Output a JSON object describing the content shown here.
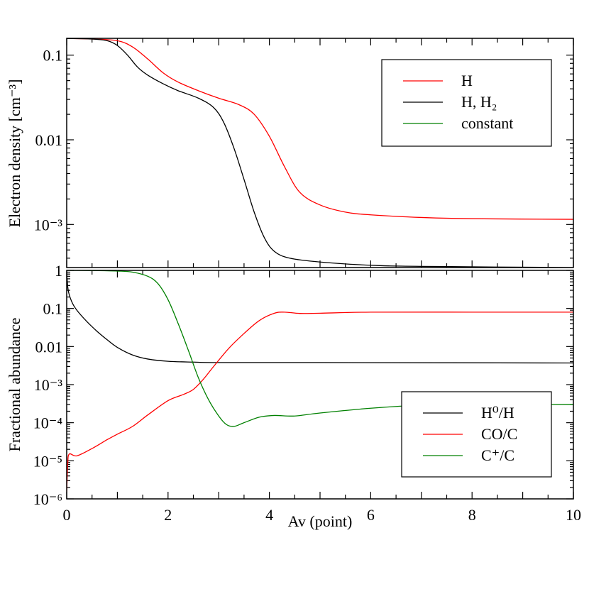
{
  "chart_data": [
    {
      "type": "line",
      "panel": "top",
      "ylabel": "Electron density [cm⁻³]",
      "yscale": "log",
      "ylim": [
        0.00031,
        0.158
      ],
      "xlim": [
        0,
        10
      ],
      "ytick_labels": [
        {
          "value": 0.1,
          "label": "0.1"
        },
        {
          "value": 0.01,
          "label": "0.01"
        },
        {
          "value": 0.001,
          "label": "10⁻³"
        }
      ],
      "legend_position": "top-right",
      "series": [
        {
          "name": "H",
          "color": "#ff0000",
          "x": [
            0,
            0.5,
            1.0,
            1.3,
            1.6,
            1.9,
            2.2,
            2.6,
            3.0,
            3.4,
            3.7,
            4.0,
            4.3,
            4.6,
            5.0,
            5.5,
            6.0,
            7.0,
            8.0,
            10.0
          ],
          "y": [
            0.157,
            0.155,
            0.148,
            0.125,
            0.09,
            0.062,
            0.048,
            0.038,
            0.031,
            0.026,
            0.02,
            0.011,
            0.0048,
            0.0024,
            0.0017,
            0.0014,
            0.0013,
            0.00121,
            0.00117,
            0.00115
          ]
        },
        {
          "name": "H, H₂",
          "color": "#000000",
          "x": [
            0,
            0.5,
            0.8,
            1.0,
            1.2,
            1.4,
            1.6,
            1.9,
            2.2,
            2.6,
            2.9,
            3.1,
            3.3,
            3.5,
            3.7,
            3.9,
            4.1,
            4.4,
            5.0,
            6.0,
            7.0,
            10.0
          ],
          "y": [
            0.157,
            0.155,
            0.148,
            0.13,
            0.1,
            0.072,
            0.058,
            0.046,
            0.038,
            0.031,
            0.024,
            0.016,
            0.008,
            0.0034,
            0.0014,
            0.0007,
            0.00048,
            0.0004,
            0.00036,
            0.00033,
            0.00032,
            0.00031
          ]
        },
        {
          "name": "constant",
          "color": "#008000",
          "x": [],
          "y": []
        }
      ]
    },
    {
      "type": "line",
      "panel": "bottom",
      "xlabel": "Av (point)",
      "ylabel": "Fractional abundance",
      "yscale": "log",
      "ylim": [
        1e-06,
        1
      ],
      "xlim": [
        0,
        10
      ],
      "xtick_labels": [
        "0",
        "2",
        "4",
        "6",
        "8",
        "10"
      ],
      "ytick_labels": [
        {
          "value": 1,
          "label": "1"
        },
        {
          "value": 0.1,
          "label": "0.1"
        },
        {
          "value": 0.01,
          "label": "0.01"
        },
        {
          "value": 0.001,
          "label": "10⁻³"
        },
        {
          "value": 0.0001,
          "label": "10⁻⁴"
        },
        {
          "value": 1e-05,
          "label": "10⁻⁵"
        },
        {
          "value": 1e-06,
          "label": "10⁻⁶"
        }
      ],
      "legend_position": "bottom-right",
      "series": [
        {
          "name": "H⁰/H",
          "color": "#000000",
          "x": [
            0,
            0.03,
            0.1,
            0.2,
            0.4,
            0.6,
            0.8,
            1.0,
            1.3,
            1.6,
            2.0,
            2.5,
            3.0,
            5.0,
            10.0
          ],
          "y": [
            0.9,
            0.3,
            0.15,
            0.09,
            0.045,
            0.025,
            0.015,
            0.0095,
            0.006,
            0.0047,
            0.0041,
            0.0039,
            0.0038,
            0.0038,
            0.0037
          ]
        },
        {
          "name": "CO/C",
          "color": "#ff0000",
          "x": [
            0,
            0.02,
            0.05,
            0.2,
            0.5,
            0.8,
            1.0,
            1.3,
            1.6,
            2.0,
            2.3,
            2.5,
            2.7,
            2.9,
            3.2,
            3.5,
            3.8,
            4.1,
            4.3,
            4.6,
            5.0,
            6.0,
            8.0,
            10.0
          ],
          "y": [
            1.5e-06,
            8e-06,
            1.5e-05,
            1.35e-05,
            2.1e-05,
            3.6e-05,
            5e-05,
            8e-05,
            0.00016,
            0.00038,
            0.00055,
            0.00075,
            0.0014,
            0.003,
            0.009,
            0.022,
            0.048,
            0.075,
            0.08,
            0.074,
            0.075,
            0.08,
            0.08,
            0.08
          ]
        },
        {
          "name": "C⁺/C",
          "color": "#008000",
          "x": [
            0,
            0.5,
            1.0,
            1.3,
            1.6,
            1.8,
            2.0,
            2.2,
            2.4,
            2.6,
            2.8,
            3.0,
            3.15,
            3.3,
            3.5,
            3.8,
            4.1,
            4.5,
            5.0,
            6.0,
            7.0,
            8.0,
            10.0
          ],
          "y": [
            1.0,
            0.99,
            0.96,
            0.9,
            0.7,
            0.45,
            0.17,
            0.04,
            0.008,
            0.0015,
            0.0004,
            0.00015,
            9e-05,
            8e-05,
            0.0001,
            0.00014,
            0.000155,
            0.00015,
            0.00018,
            0.00024,
            0.00029,
            0.0003,
            0.0003
          ]
        }
      ]
    }
  ]
}
